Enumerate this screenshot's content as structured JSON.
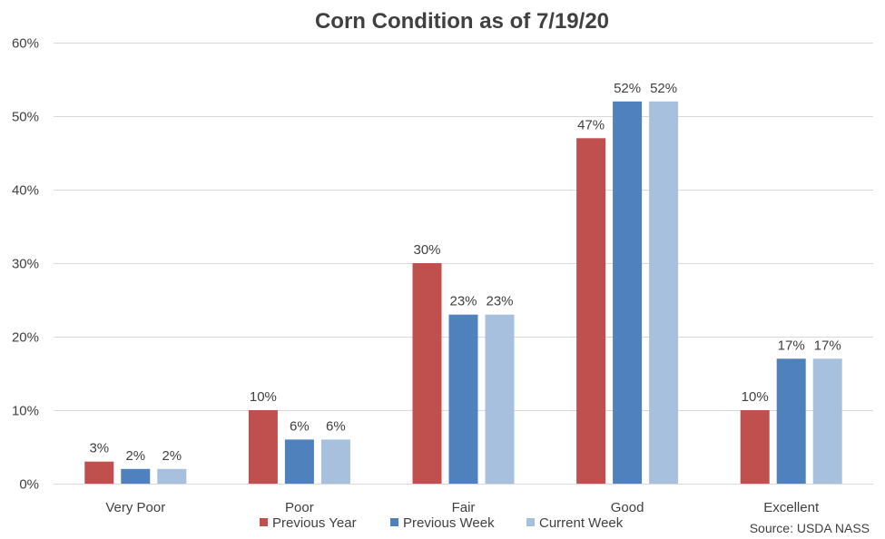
{
  "chart_data": {
    "type": "bar",
    "title": "Corn Condition as of 7/19/20",
    "categories": [
      "Very Poor",
      "Poor",
      "Fair",
      "Good",
      "Excellent"
    ],
    "series": [
      {
        "name": "Previous Year",
        "color": "#C0504D",
        "values": [
          3,
          10,
          30,
          47,
          10
        ]
      },
      {
        "name": "Previous Week",
        "color": "#4F81BD",
        "values": [
          2,
          6,
          23,
          52,
          17
        ]
      },
      {
        "name": "Current Week",
        "color": "#A7C0DE",
        "values": [
          2,
          6,
          23,
          52,
          17
        ]
      }
    ],
    "ylim": [
      0,
      60
    ],
    "yticks": [
      0,
      10,
      20,
      30,
      40,
      50,
      60
    ],
    "ytick_labels": [
      "0%",
      "10%",
      "20%",
      "30%",
      "40%",
      "50%",
      "60%"
    ],
    "value_suffix": "%",
    "grid": true,
    "legend_position": "bottom"
  },
  "source": "Source: USDA NASS"
}
